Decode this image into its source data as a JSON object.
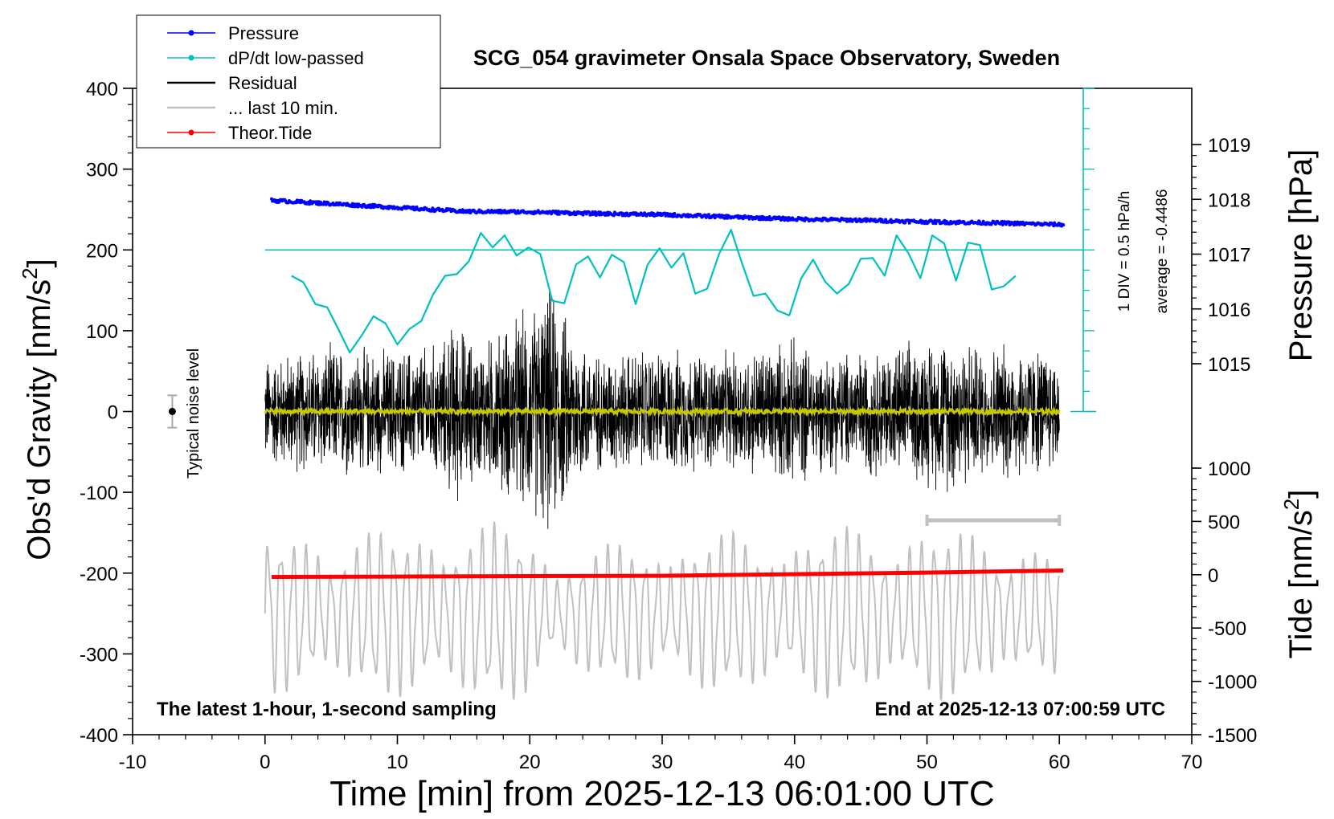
{
  "chart_data": {
    "type": "line",
    "title": "SCG_054 gravimeter Onsala Space Observatory, Sweden",
    "xlabel": "Time [min] from 2025-12-13 06:01:00 UTC",
    "ylabel_left": "Obs'd Gravity [nm/s",
    "ylabel_left_sup": "2",
    "ylabel_left_end": "]",
    "ylabel_right_pressure": "Pressure [hPa]",
    "ylabel_right_tide": "Tide [nm/s",
    "ylabel_right_tide_sup": "2",
    "ylabel_right_tide_end": "]",
    "xlim": [
      -10,
      70
    ],
    "ylim": [
      -400,
      400
    ],
    "x_ticks": [
      -10,
      0,
      10,
      20,
      30,
      40,
      50,
      60,
      70
    ],
    "y_ticks": [
      -400,
      -300,
      -200,
      -100,
      0,
      100,
      200,
      300,
      400
    ],
    "pressure_ticks": [
      1015,
      1016,
      1017,
      1018,
      1019
    ],
    "tide_ticks": [
      -1500,
      -1000,
      -500,
      0,
      500,
      1000
    ],
    "annotation_left": "The latest 1-hour, 1-second sampling",
    "annotation_right": "End at 2025-12-13 07:00:59 UTC",
    "noise_label": "Typical noise level",
    "noise_level": {
      "x": -7,
      "y": 0,
      "err": 20
    },
    "dpdt_scale": "1 DIV = 0.5 hPa/h",
    "dpdt_average": "average = -0.4486",
    "ten_min_bar": [
      50,
      60
    ],
    "legend": [
      {
        "label": "Pressure",
        "color": "#0000ff",
        "marker": true
      },
      {
        "label": "dP/dt low-passed",
        "color": "#00c0c0",
        "marker": true
      },
      {
        "label": "Residual",
        "color": "#000000",
        "marker": false
      },
      {
        "label": "... last 10 min.",
        "color": "#c0c0c0",
        "marker": false
      },
      {
        "label": "Theor.Tide",
        "color": "#ff0000",
        "marker": true
      }
    ],
    "series": [
      {
        "name": "Pressure",
        "units": "hPa",
        "color": "#0000ff",
        "x": [
          0.5,
          5,
          10,
          15,
          20,
          25,
          30,
          35,
          40,
          45,
          50,
          55,
          60
        ],
        "values": [
          1017.98,
          1017.92,
          1017.85,
          1017.78,
          1017.77,
          1017.74,
          1017.72,
          1017.68,
          1017.64,
          1017.62,
          1017.59,
          1017.57,
          1017.54
        ]
      },
      {
        "name": "dP/dt low-passed",
        "units": "gravity-axis",
        "color": "#00c0c0",
        "x": [
          2.0,
          2.9,
          3.8,
          4.7,
          5.6,
          6.4,
          7.3,
          8.2,
          9.1,
          10.0,
          10.9,
          11.8,
          12.7,
          13.6,
          14.5,
          15.4,
          16.3,
          17.2,
          18.1,
          19.0,
          19.9,
          20.8,
          21.7,
          22.6,
          23.5,
          24.4,
          25.3,
          26.2,
          27.1,
          28.0,
          28.9,
          29.8,
          30.7,
          31.6,
          32.5,
          33.4,
          34.3,
          35.2,
          36.0,
          36.9,
          37.8,
          38.7,
          39.6,
          40.5,
          41.4,
          42.3,
          43.2,
          44.1,
          45.0,
          45.9,
          46.8,
          47.7,
          48.6,
          49.5,
          50.4,
          51.3,
          52.2,
          53.1,
          54.0,
          54.9,
          55.8,
          56.7
        ],
        "values": [
          168,
          160,
          133,
          129,
          100,
          73,
          94,
          118,
          109,
          83,
          102,
          112,
          145,
          168,
          170,
          186,
          221,
          203,
          218,
          193,
          203,
          195,
          137,
          134,
          182,
          192,
          166,
          194,
          185,
          133,
          182,
          202,
          178,
          196,
          146,
          152,
          195,
          225,
          185,
          143,
          146,
          125,
          119,
          165,
          188,
          161,
          146,
          158,
          189,
          190,
          168,
          218,
          196,
          165,
          218,
          208,
          162,
          209,
          206,
          151,
          155,
          168
        ]
      },
      {
        "name": "Residual",
        "units": "nm/s2",
        "color": "#000000",
        "x": [
          0,
          5,
          10,
          13.5,
          14.3,
          16,
          20.5,
          21.5,
          22.5,
          23,
          25,
          30,
          35,
          40,
          42,
          45,
          48,
          52,
          54,
          57,
          60
        ],
        "amplitude": [
          75,
          90,
          85,
          95,
          130,
          90,
          150,
          170,
          140,
          120,
          80,
          85,
          80,
          100,
          80,
          85,
          90,
          110,
          90,
          95,
          80
        ]
      },
      {
        "name": "... last 10 min.",
        "units": "gravity-axis",
        "color": "#c0c0c0",
        "x": [
          0,
          5,
          10,
          14,
          20,
          22,
          30,
          40,
          45,
          55,
          60
        ],
        "center": -250,
        "amplitude": [
          80,
          85,
          85,
          95,
          90,
          60,
          80,
          85,
          90,
          85,
          60
        ]
      },
      {
        "name": "Theor.Tide",
        "units": "nm/s2",
        "color": "#ff0000",
        "x": [
          0.5,
          10,
          20,
          30,
          40,
          50,
          60.3
        ],
        "values": [
          -20,
          -17,
          -13,
          -10,
          5,
          20,
          40
        ]
      }
    ]
  }
}
